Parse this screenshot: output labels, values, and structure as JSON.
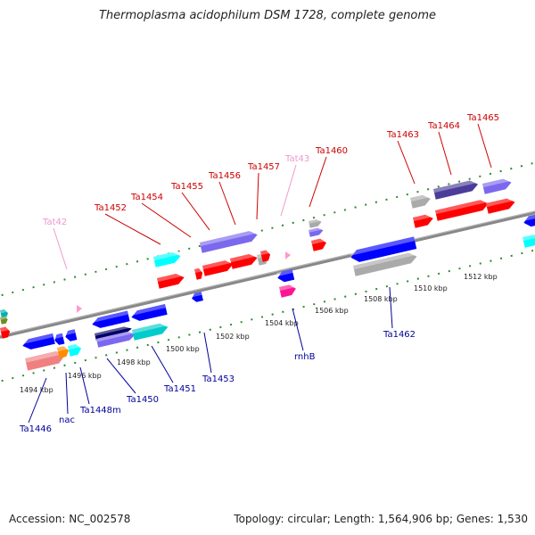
{
  "title": "Thermoplasma acidophilum DSM 1728, complete genome",
  "footer": {
    "accession": "Accession: NC_002578",
    "summary": "Topology: circular; Length: 1,564,906 bp; Genes: 1,530"
  },
  "colors": {
    "backbone": "#888888",
    "tick": "#2e8b2e",
    "top_label": "#cc0000",
    "bottom_label": "#000099",
    "rna_label": "#ee99cc",
    "rna_arrow": "#ff99cc"
  },
  "axis": {
    "ticks_kbp": [
      1494,
      1496,
      1498,
      1500,
      1502,
      1504,
      1506,
      1508,
      1510,
      1512
    ],
    "tick_labels": [
      "1494 kbp",
      "1496 kbp",
      "1498 kbp",
      "1500 kbp",
      "1502 kbp",
      "1504 kbp",
      "1506 kbp",
      "1508 kbp",
      "1510 kbp",
      "1512 kbp"
    ]
  },
  "labels": {
    "top": [
      {
        "text": "Tat42",
        "kind": "rna"
      },
      {
        "text": "Ta1452",
        "kind": "gene"
      },
      {
        "text": "Ta1454",
        "kind": "gene"
      },
      {
        "text": "Ta1455",
        "kind": "gene"
      },
      {
        "text": "Ta1456",
        "kind": "gene"
      },
      {
        "text": "Ta1457",
        "kind": "gene"
      },
      {
        "text": "Tat43",
        "kind": "rna"
      },
      {
        "text": "Ta1460",
        "kind": "gene"
      },
      {
        "text": "Ta1463",
        "kind": "gene"
      },
      {
        "text": "Ta1464",
        "kind": "gene"
      },
      {
        "text": "Ta1465",
        "kind": "gene"
      }
    ],
    "bottom": [
      {
        "text": "Ta1446"
      },
      {
        "text": "nac"
      },
      {
        "text": "Ta1448m"
      },
      {
        "text": "Ta1450"
      },
      {
        "text": "Ta1451"
      },
      {
        "text": "Ta1453"
      },
      {
        "text": "rnhB"
      },
      {
        "text": "Ta1462"
      }
    ]
  }
}
